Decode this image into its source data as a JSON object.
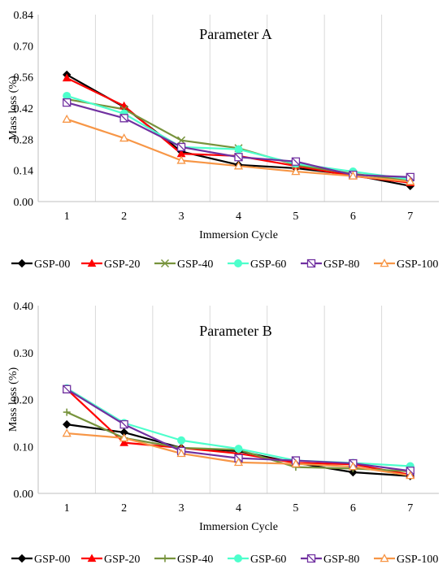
{
  "chart_data": [
    {
      "type": "line",
      "title": "Parameter A",
      "xlabel": "Immersion Cycle",
      "ylabel": "Mass loss (%)",
      "x": [
        1,
        2,
        3,
        4,
        5,
        6,
        7
      ],
      "ylim": [
        0,
        0.84
      ],
      "yticks": [
        "0.00",
        "0.14",
        "0.28",
        "0.42",
        "0.56",
        "0.70",
        "0.84"
      ],
      "grid": "vertical",
      "legend": "bottom",
      "series": [
        {
          "name": "GSP-00",
          "color": "#000000",
          "marker": "diamond",
          "values": [
            0.57,
            0.425,
            0.225,
            0.165,
            0.15,
            0.12,
            0.07
          ]
        },
        {
          "name": "GSP-20",
          "color": "#ff0000",
          "marker": "triangle",
          "values": [
            0.555,
            0.43,
            0.215,
            0.205,
            0.16,
            0.115,
            0.085
          ]
        },
        {
          "name": "GSP-40",
          "color": "#77933c",
          "marker": "x",
          "values": [
            0.46,
            0.415,
            0.275,
            0.24,
            0.165,
            0.125,
            0.095
          ]
        },
        {
          "name": "GSP-60",
          "color": "#4dffcc",
          "marker": "circle",
          "values": [
            0.475,
            0.395,
            0.245,
            0.235,
            0.17,
            0.135,
            0.1
          ]
        },
        {
          "name": "GSP-80",
          "color": "#7030a0",
          "marker": "square-slash",
          "values": [
            0.445,
            0.375,
            0.245,
            0.2,
            0.18,
            0.12,
            0.11
          ]
        },
        {
          "name": "GSP-100",
          "color": "#f79646",
          "marker": "triangle-open",
          "values": [
            0.37,
            0.285,
            0.185,
            0.16,
            0.135,
            0.115,
            0.09
          ]
        }
      ]
    },
    {
      "type": "line",
      "title": "Parameter B",
      "xlabel": "Immersion Cycle",
      "ylabel": "Mass loss (%)",
      "x": [
        1,
        2,
        3,
        4,
        5,
        6,
        7
      ],
      "ylim": [
        0,
        0.4
      ],
      "yticks": [
        "0.00",
        "0.10",
        "0.20",
        "0.30",
        "0.40"
      ],
      "grid": "vertical",
      "legend": "bottom",
      "series": [
        {
          "name": "GSP-00",
          "color": "#000000",
          "marker": "diamond",
          "values": [
            0.147,
            0.13,
            0.097,
            0.09,
            0.065,
            0.045,
            0.037
          ]
        },
        {
          "name": "GSP-20",
          "color": "#ff0000",
          "marker": "triangle",
          "values": [
            0.222,
            0.108,
            0.097,
            0.085,
            0.065,
            0.062,
            0.04
          ]
        },
        {
          "name": "GSP-40",
          "color": "#77933c",
          "marker": "plus",
          "values": [
            0.173,
            0.118,
            0.097,
            0.093,
            0.056,
            0.053,
            0.047
          ]
        },
        {
          "name": "GSP-60",
          "color": "#4dffcc",
          "marker": "circle",
          "values": [
            0.224,
            0.15,
            0.113,
            0.095,
            0.07,
            0.065,
            0.058
          ]
        },
        {
          "name": "GSP-80",
          "color": "#7030a0",
          "marker": "square-slash",
          "values": [
            0.222,
            0.147,
            0.09,
            0.075,
            0.07,
            0.064,
            0.048
          ]
        },
        {
          "name": "GSP-100",
          "color": "#f79646",
          "marker": "triangle-open",
          "values": [
            0.128,
            0.118,
            0.085,
            0.066,
            0.063,
            0.057,
            0.038
          ]
        }
      ]
    }
  ]
}
